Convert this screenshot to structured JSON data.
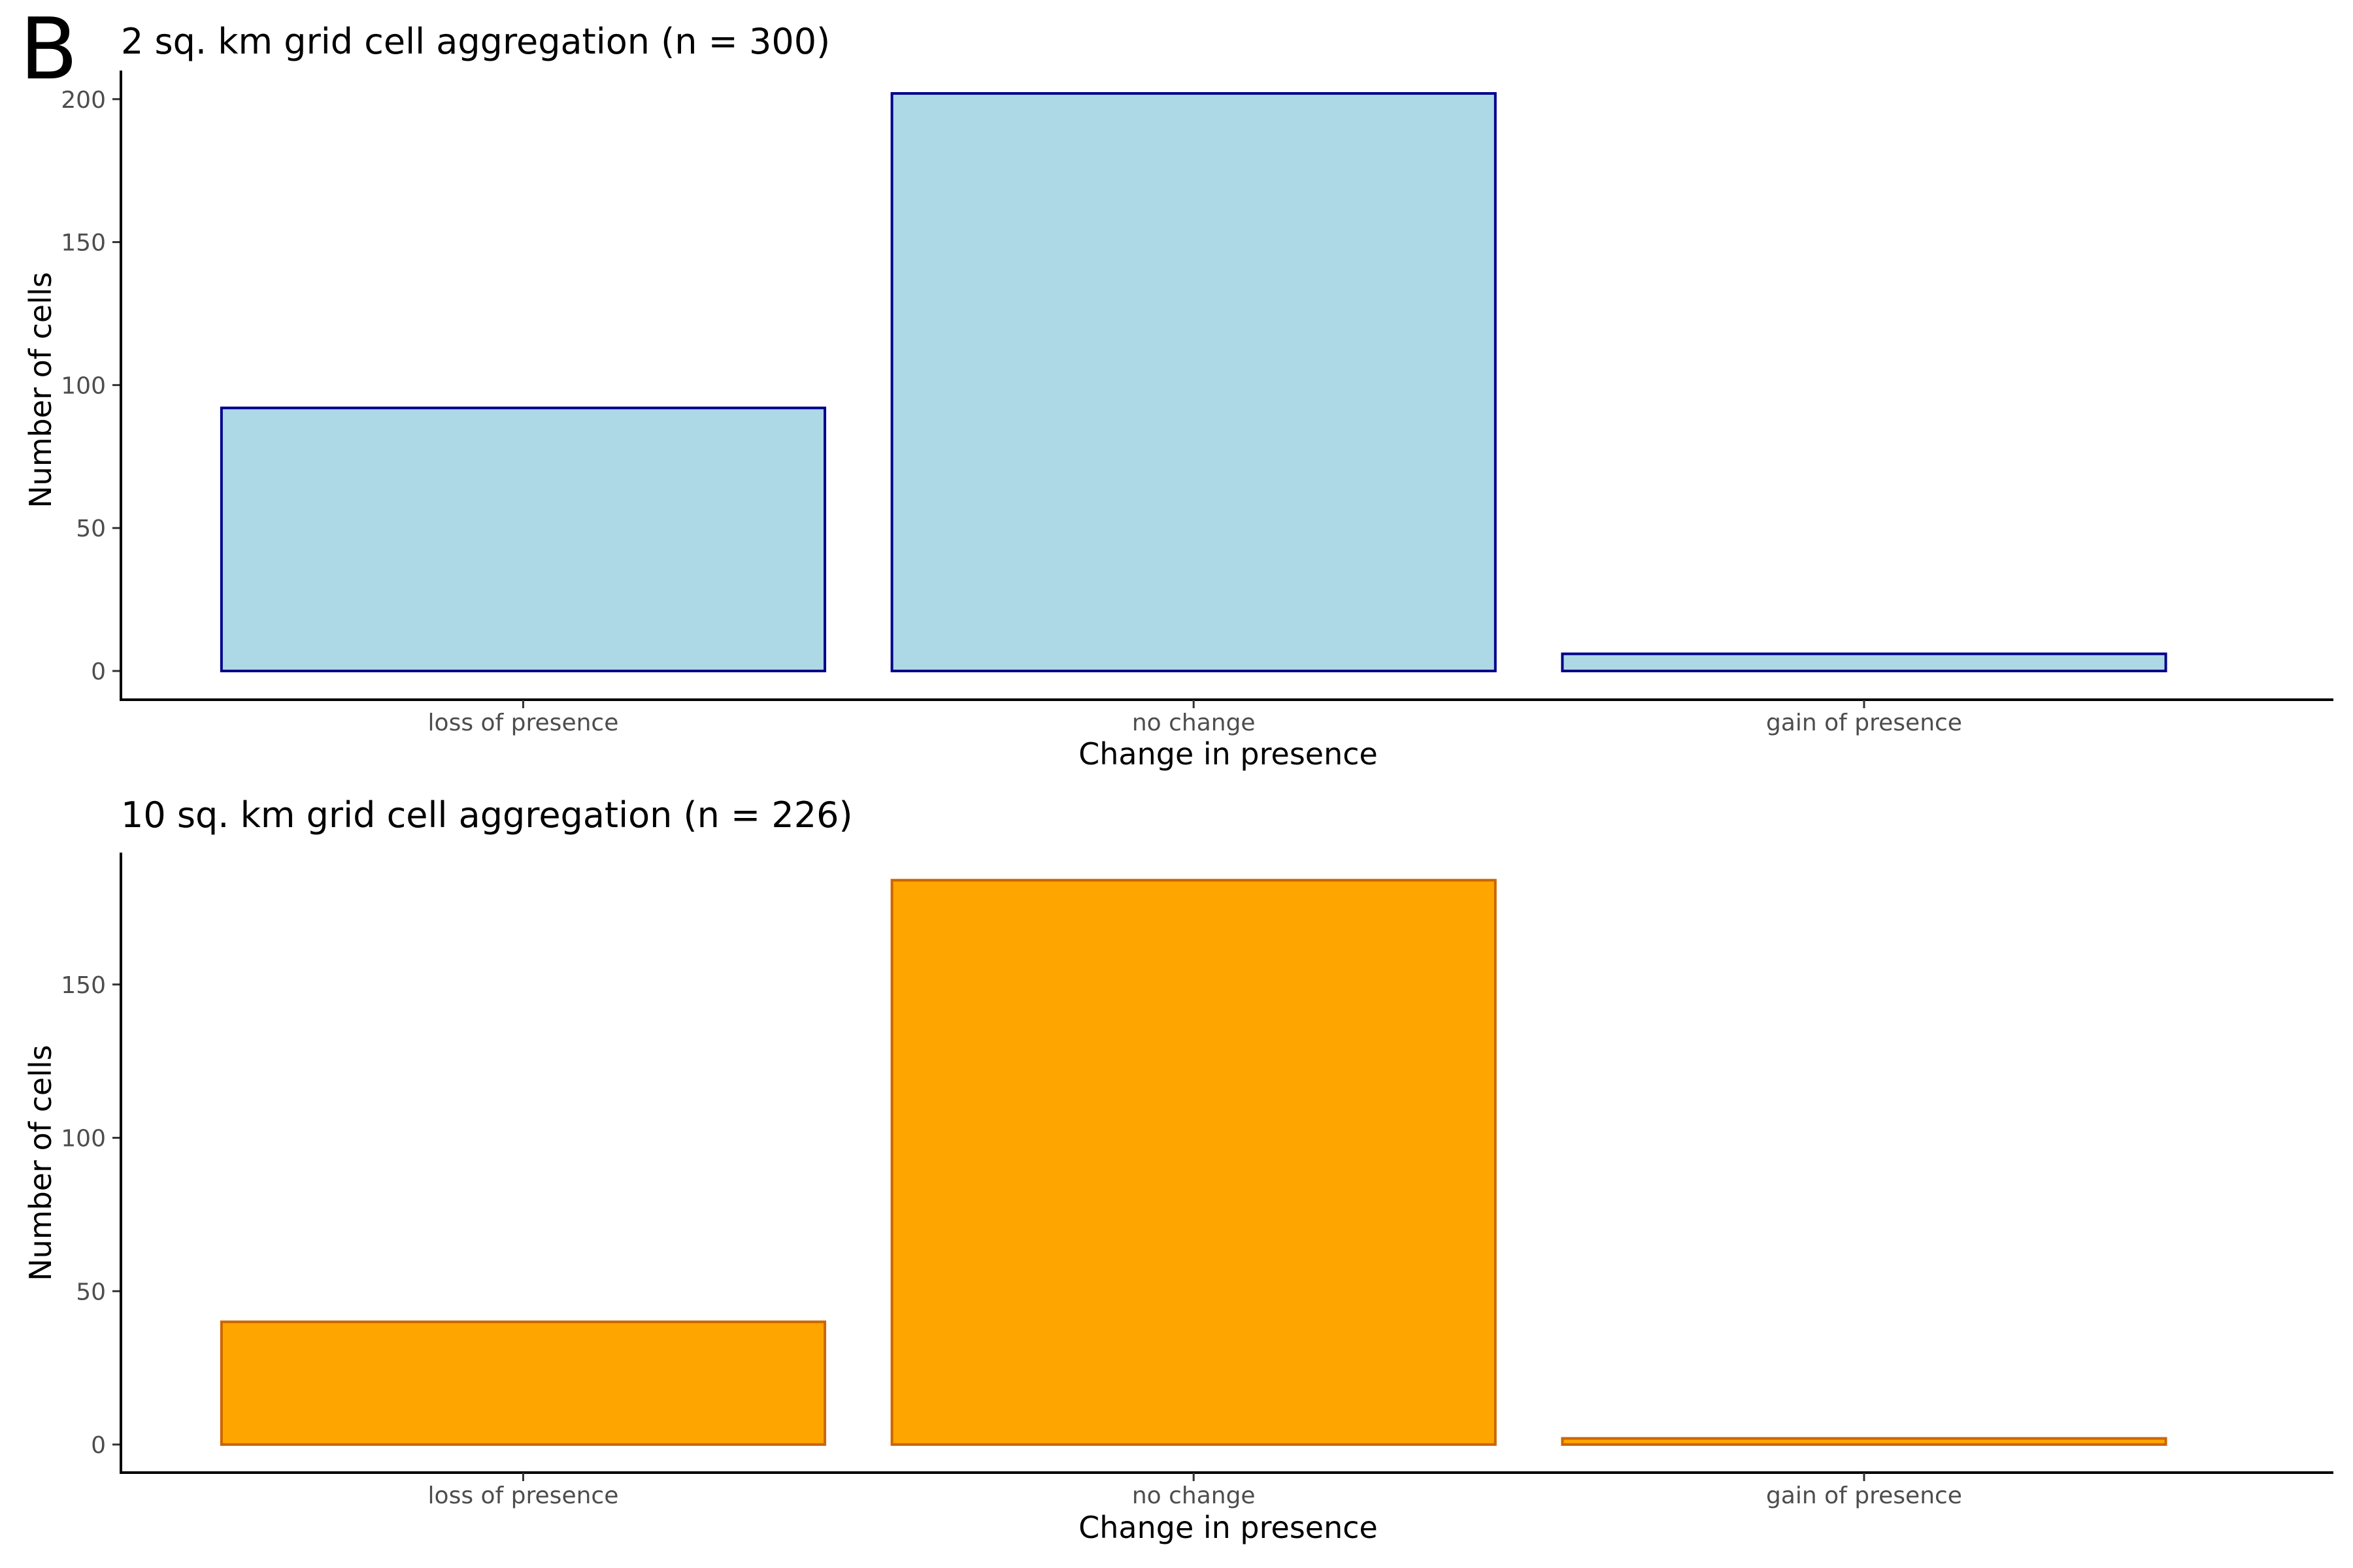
{
  "panel_label": "B",
  "chart_data": [
    {
      "type": "bar",
      "title": "2 sq. km grid cell aggregation (n = 300)",
      "xlabel": "Change in presence",
      "ylabel": "Number of cells",
      "categories": [
        "loss of presence",
        "no change",
        "gain of presence"
      ],
      "values": [
        92,
        202,
        6
      ],
      "ylim": [
        0,
        210
      ],
      "yticks": [
        0,
        50,
        100,
        150,
        200
      ],
      "fill": "#add8e6",
      "stroke": "#00008b",
      "grid": false
    },
    {
      "type": "bar",
      "title": "10 sq. km grid cell aggregation (n = 226)",
      "xlabel": "Change in presence",
      "ylabel": "Number of cells",
      "categories": [
        "loss of presence",
        "no change",
        "gain of presence"
      ],
      "values": [
        40,
        184,
        2
      ],
      "ylim": [
        0,
        193
      ],
      "yticks": [
        0,
        50,
        100,
        150
      ],
      "fill": "#ffa500",
      "stroke": "#cc6600",
      "grid": false
    }
  ]
}
